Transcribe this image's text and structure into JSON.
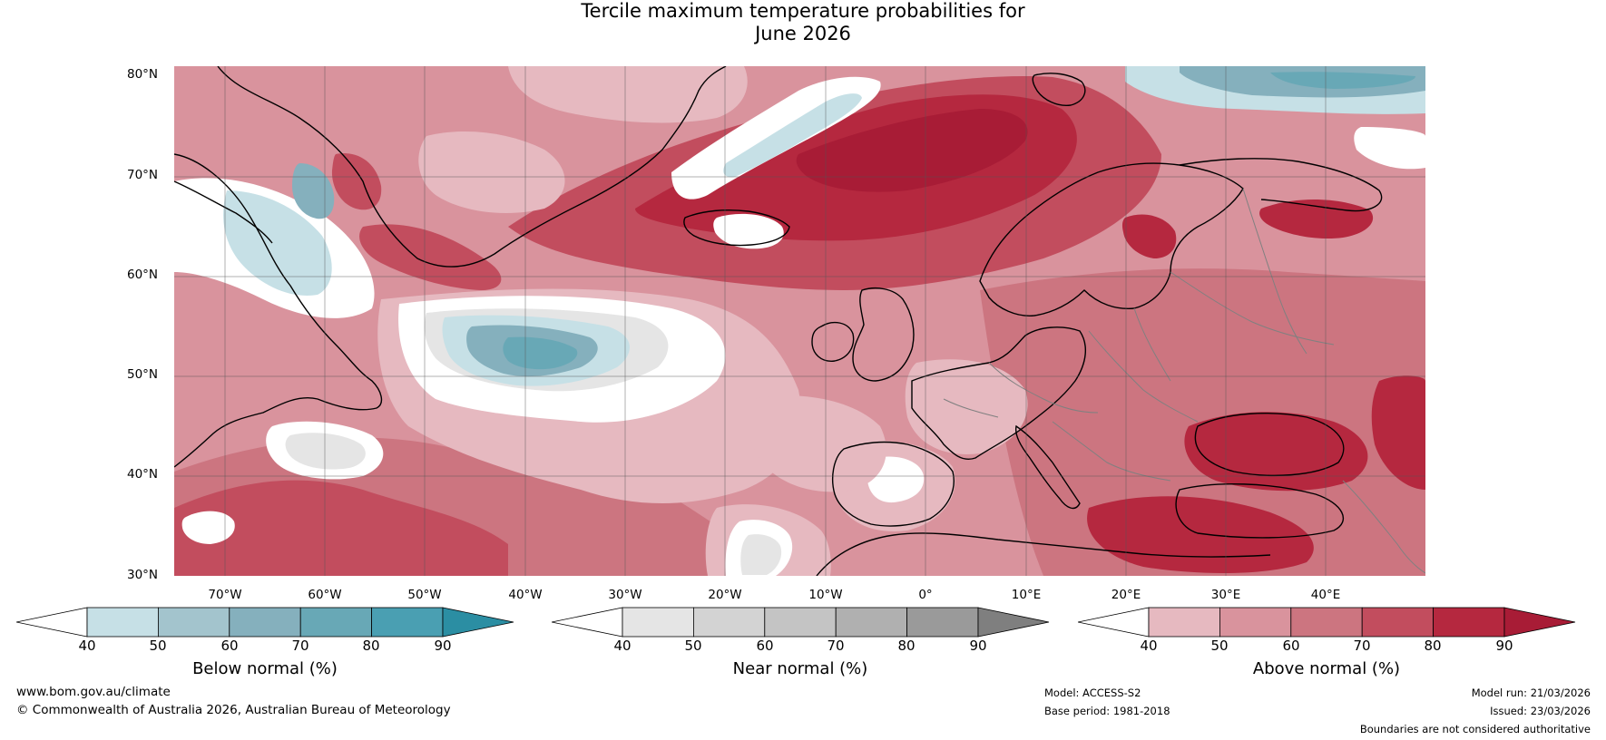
{
  "title": {
    "line1": "Tercile maximum temperature probabilities for",
    "line2": "June 2026"
  },
  "map": {
    "lat_labels": [
      "80°N",
      "70°N",
      "60°N",
      "50°N",
      "40°N",
      "30°N"
    ],
    "lon_labels": [
      "70°W",
      "60°W",
      "50°W",
      "40°W",
      "30°W",
      "20°W",
      "10°W",
      "0°",
      "10°E",
      "20°E",
      "30°E",
      "40°E"
    ],
    "colors": {
      "above": [
        "#e6b9c0",
        "#d9939d",
        "#cc7580",
        "#c24d5e",
        "#b5283f",
        "#a81c36"
      ],
      "below": [
        "#c6e0e6",
        "#a3c4cd",
        "#85b0bd",
        "#68a8b6",
        "#4a9fb2",
        "#2b8ea3"
      ],
      "near": [
        "#e5e5e5",
        "#d3d3d3",
        "#c4c4c4",
        "#b0b0b0",
        "#9a9a9a",
        "#7f7f7f"
      ],
      "land_line": "#000000",
      "border_line": "#808080"
    }
  },
  "colorbars": [
    {
      "id": "below",
      "label": "Below normal (%)",
      "ticks": [
        "40",
        "50",
        "60",
        "70",
        "80",
        "90"
      ],
      "colors": [
        "#ffffff",
        "#c6e0e6",
        "#a3c4cd",
        "#85b0bd",
        "#68a8b6",
        "#4a9fb2",
        "#2b8ea3"
      ]
    },
    {
      "id": "near",
      "label": "Near normal (%)",
      "ticks": [
        "40",
        "50",
        "60",
        "70",
        "80",
        "90"
      ],
      "colors": [
        "#ffffff",
        "#e5e5e5",
        "#d3d3d3",
        "#c4c4c4",
        "#b0b0b0",
        "#9a9a9a",
        "#7f7f7f"
      ]
    },
    {
      "id": "above",
      "label": "Above normal (%)",
      "ticks": [
        "40",
        "50",
        "60",
        "70",
        "80",
        "90"
      ],
      "colors": [
        "#ffffff",
        "#e6b9c0",
        "#d9939d",
        "#cc7580",
        "#c24d5e",
        "#b5283f",
        "#a81c36"
      ]
    }
  ],
  "footer": {
    "website": "www.bom.gov.au/climate",
    "copyright": "© Commonwealth of Australia 2026, Australian Bureau of Meteorology",
    "model": "Model: ACCESS-S2",
    "base_period": "Base period: 1981-2018",
    "model_run": "Model run: 21/03/2026",
    "issued": "Issued: 23/03/2026",
    "disclaimer": "Boundaries are not considered authoritative"
  }
}
